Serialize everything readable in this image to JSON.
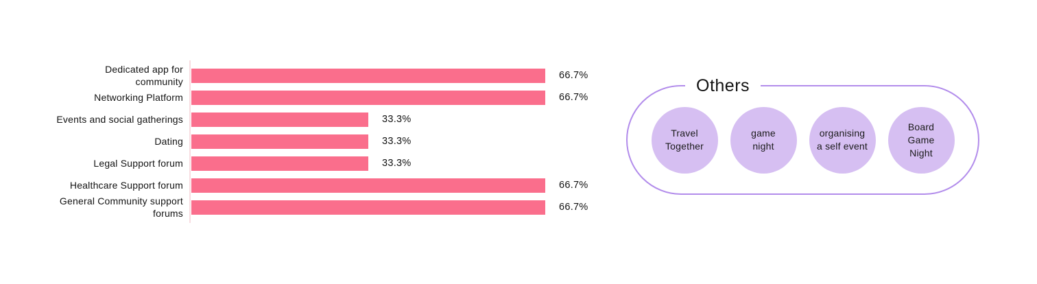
{
  "chart_data": {
    "type": "bar",
    "orientation": "horizontal",
    "title": "",
    "xlabel": "",
    "ylabel": "",
    "grid": false,
    "legend": false,
    "xlim": [
      0,
      100
    ],
    "categories": [
      "Dedicated app for community",
      "Networking Platform",
      "Events and social gatherings",
      "Dating",
      "Legal Support forum",
      "Healthcare Support forum",
      "General Community support forums"
    ],
    "values": [
      66.7,
      66.7,
      33.3,
      33.3,
      33.3,
      66.7,
      66.7
    ],
    "value_labels": [
      "66.7%",
      "66.7%",
      "33.3%",
      "33.3%",
      "33.3%",
      "66.7%",
      "66.7%"
    ],
    "bar_color": "#fa6e8c",
    "axis_line_color": "#f8dce1",
    "label_color": "#111111"
  },
  "others": {
    "title": "Others",
    "border_color": "#b28ceb",
    "circle_color": "#d6bff2",
    "text_color": "#1a1a1a",
    "items": [
      "Travel\nTogether",
      "game\nnight",
      "organising\na self event",
      "Board\nGame\nNight"
    ]
  }
}
